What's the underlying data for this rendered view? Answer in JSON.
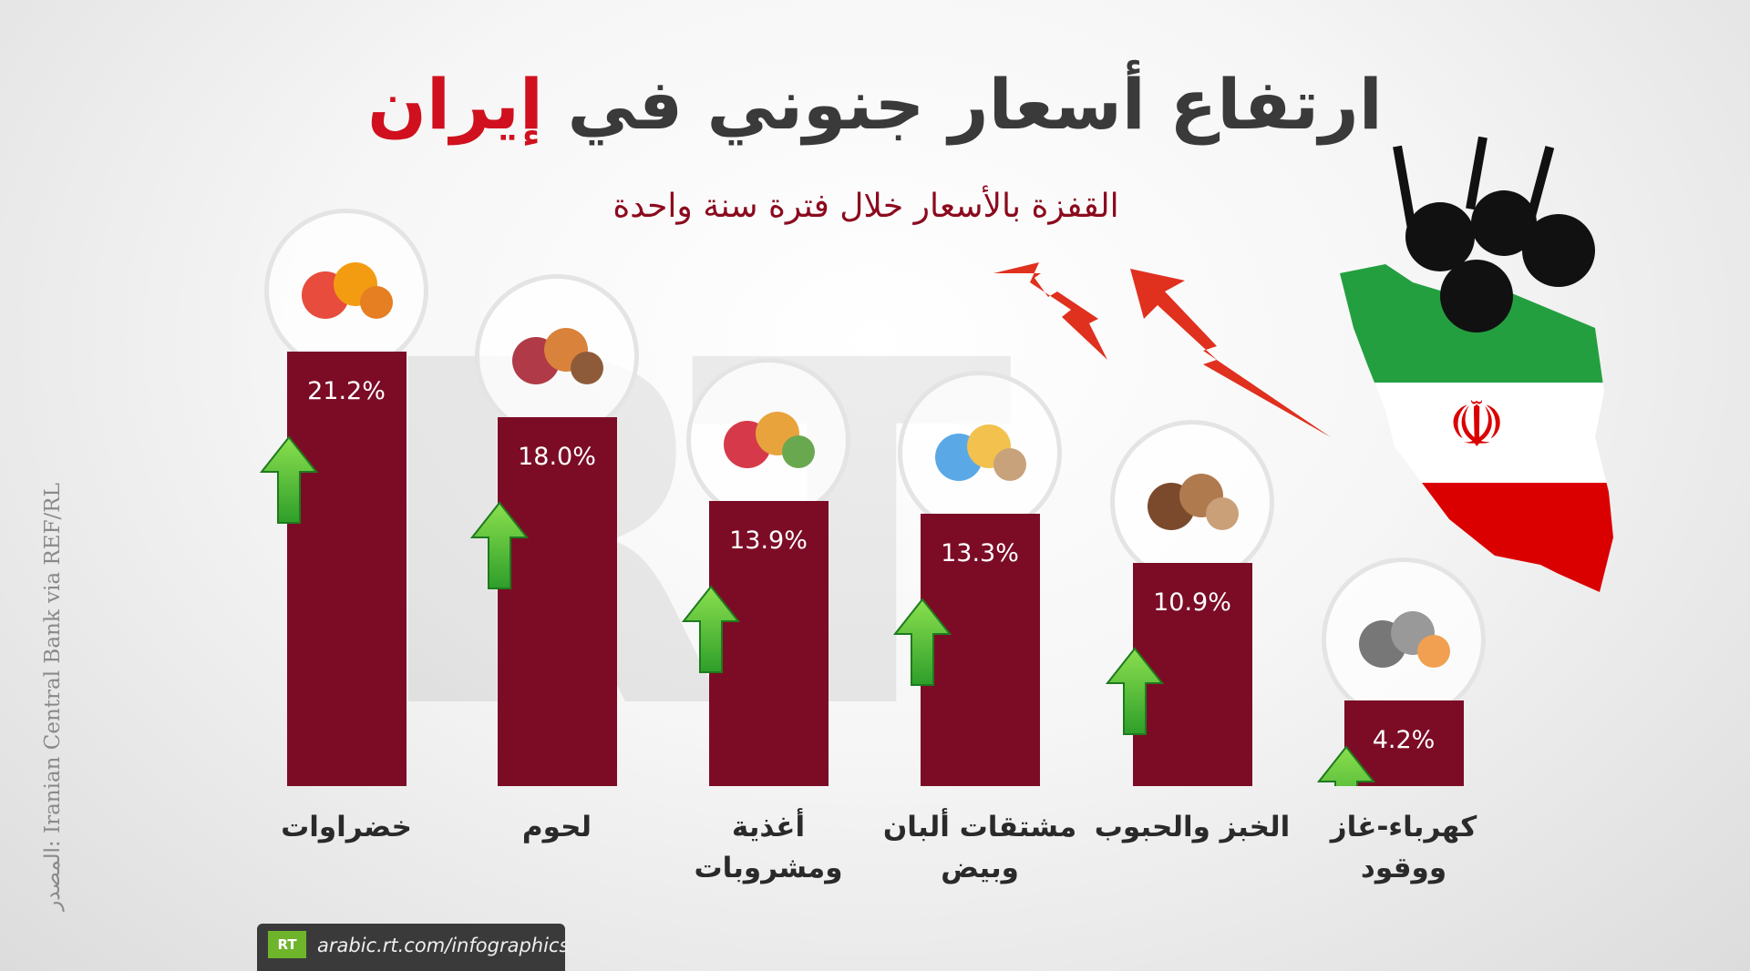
{
  "chart_data": {
    "type": "bar",
    "title": "ارتفاع أسعار جنوني في",
    "title_highlight": "إيران",
    "subtitle": "القفزة بالأسعار خلال فترة سنة واحدة",
    "categories": [
      "خضراوات",
      "لحوم",
      "أغذية ومشروبات",
      "مشتقات ألبان وبيض",
      "الخبز والحبوب",
      "كهرباء-غاز ووقود"
    ],
    "values": [
      21.2,
      18.0,
      13.9,
      13.3,
      10.9,
      4.2
    ],
    "value_labels": [
      "21.2%",
      "18.0%",
      "13.9%",
      "13.3%",
      "10.9%",
      "4.2%"
    ],
    "color": "#7c0c26",
    "source": "المصدر: Iranian Central Bank via REF/RL",
    "watermark": "RT",
    "logo": "RT",
    "footer": "arabic.rt.com/infographics"
  }
}
